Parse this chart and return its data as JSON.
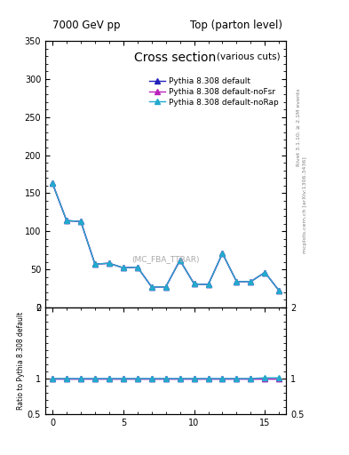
{
  "title_left": "7000 GeV pp",
  "title_right": "Top (parton level)",
  "plot_title": "Cross section",
  "plot_title_suffix": "(various cuts)",
  "right_label_top": "Rivet 3.1.10; ≥ 2.1M events",
  "right_label_bottom": "mcplots.cern.ch [arXiv:1306.3436]",
  "watermark": "(MC_FBA_TTBAR)",
  "ylabel_ratio": "Ratio to Pythia 8.308 default",
  "ylim_main": [
    0,
    350
  ],
  "ylim_ratio": [
    0.5,
    2
  ],
  "xlim": [
    -0.5,
    16.5
  ],
  "x_ticks": [
    0,
    5,
    10,
    15
  ],
  "yticks_main": [
    0,
    50,
    100,
    150,
    200,
    250,
    300,
    350
  ],
  "series": [
    {
      "label": "Pythia 8.308 default",
      "color": "#2222bb",
      "marker": "^",
      "x": [
        0,
        1,
        2,
        3,
        4,
        5,
        6,
        7,
        8,
        9,
        10,
        11,
        12,
        13,
        14,
        15,
        16
      ],
      "y": [
        163,
        114,
        113,
        57,
        58,
        52,
        53,
        27,
        27,
        62,
        31,
        30,
        71,
        34,
        34,
        46,
        22
      ]
    },
    {
      "label": "Pythia 8.308 default-noFsr",
      "color": "#bb22bb",
      "marker": "^",
      "x": [
        0,
        1,
        2,
        3,
        4,
        5,
        6,
        7,
        8,
        9,
        10,
        11,
        12,
        13,
        14,
        15,
        16
      ],
      "y": [
        163,
        114,
        113,
        57,
        58,
        52,
        53,
        27,
        27,
        62,
        31,
        30,
        71,
        34,
        34,
        46,
        22
      ]
    },
    {
      "label": "Pythia 8.308 default-noRap",
      "color": "#22aacc",
      "marker": "^",
      "x": [
        0,
        1,
        2,
        3,
        4,
        5,
        6,
        7,
        8,
        9,
        10,
        11,
        12,
        13,
        14,
        15,
        16
      ],
      "y": [
        163,
        114,
        113,
        57,
        58,
        52,
        53,
        27,
        27,
        62,
        31,
        30,
        71,
        34,
        34,
        46,
        22
      ]
    }
  ],
  "ratio_series": [
    {
      "color": "#2222bb",
      "marker": "^",
      "x": [
        0,
        1,
        2,
        3,
        4,
        5,
        6,
        7,
        8,
        9,
        10,
        11,
        12,
        13,
        14,
        15,
        16
      ],
      "y": [
        1.0,
        1.0,
        1.0,
        1.0,
        1.0,
        1.0,
        1.0,
        1.0,
        1.0,
        1.0,
        1.0,
        1.0,
        1.0,
        1.0,
        1.0,
        1.0,
        1.0
      ]
    },
    {
      "color": "#bb22bb",
      "marker": "^",
      "x": [
        0,
        1,
        2,
        3,
        4,
        5,
        6,
        7,
        8,
        9,
        10,
        11,
        12,
        13,
        14,
        15,
        16
      ],
      "y": [
        1.0,
        1.0,
        1.0,
        1.0,
        1.0,
        1.0,
        1.0,
        1.0,
        1.0,
        1.0,
        1.0,
        1.0,
        1.0,
        1.0,
        1.0,
        1.0,
        1.0
      ]
    },
    {
      "color": "#22aacc",
      "marker": "^",
      "x": [
        0,
        1,
        2,
        3,
        4,
        5,
        6,
        7,
        8,
        9,
        10,
        11,
        12,
        13,
        14,
        15,
        16
      ],
      "y": [
        1.0,
        1.0,
        1.0,
        1.0,
        1.0,
        1.0,
        1.0,
        1.0,
        1.0,
        1.0,
        1.0,
        1.0,
        1.0,
        1.0,
        1.0,
        1.01,
        1.01
      ]
    }
  ]
}
